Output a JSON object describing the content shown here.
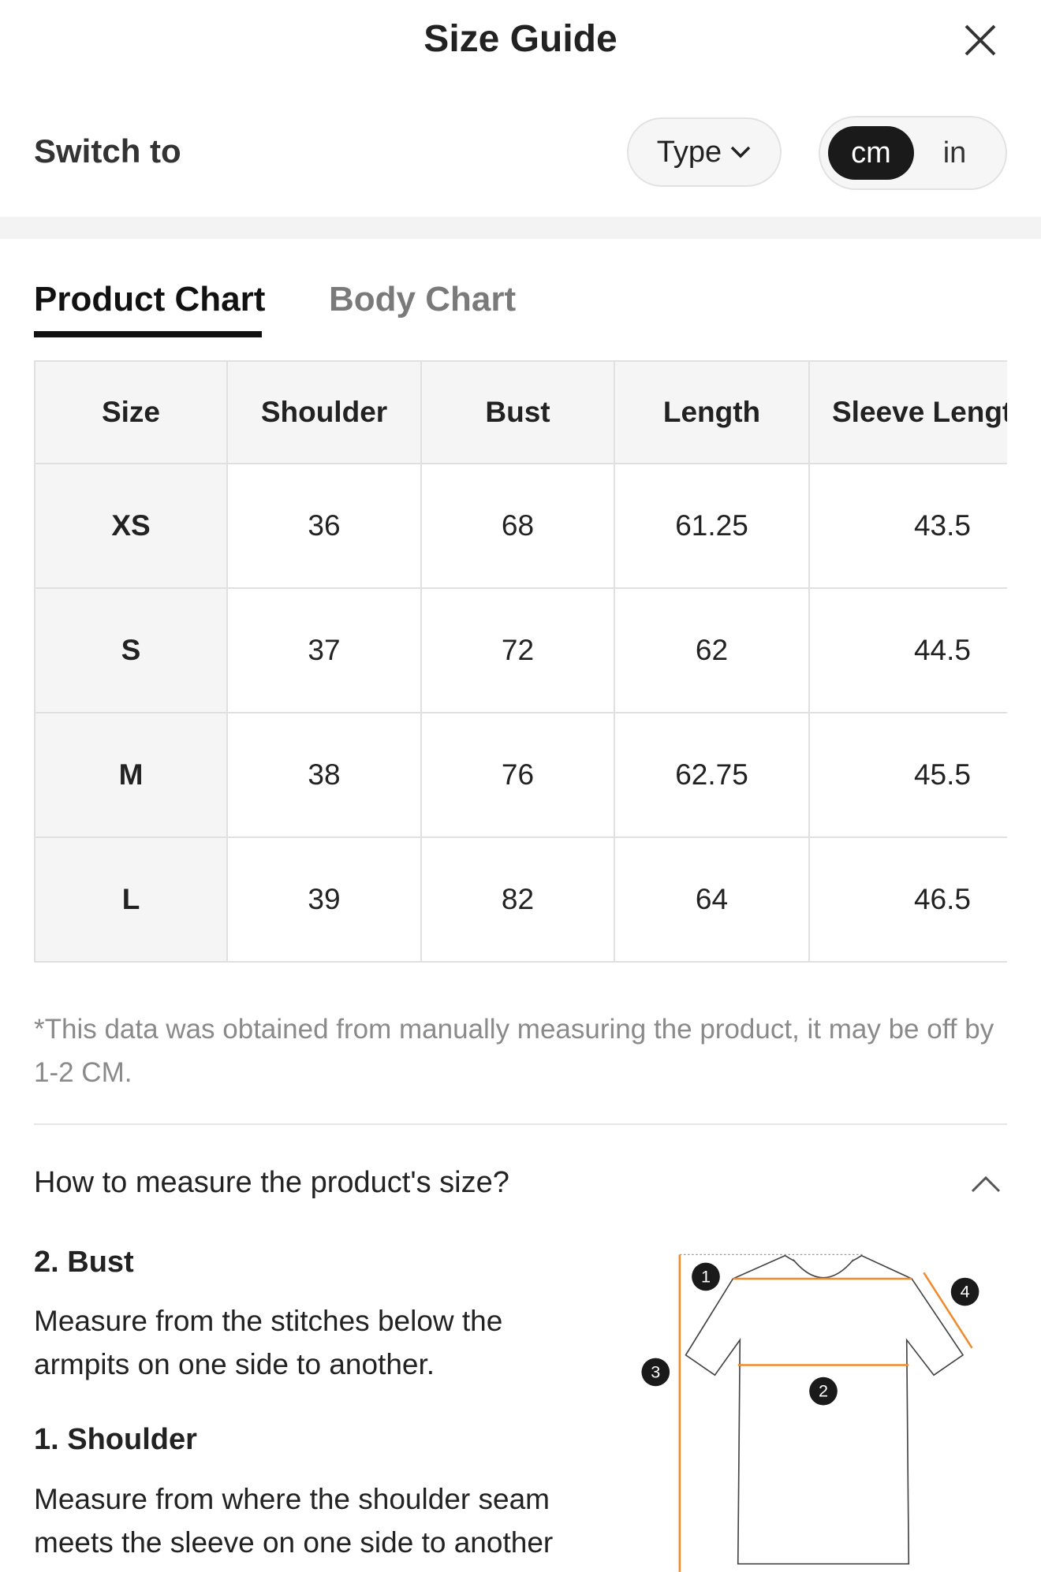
{
  "header": {
    "title": "Size Guide"
  },
  "switch": {
    "label": "Switch to",
    "type": "Type",
    "units": [
      "cm",
      "in"
    ]
  },
  "tabs": [
    "Product Chart",
    "Body Chart"
  ],
  "table": {
    "columns": [
      "Size",
      "Shoulder",
      "Bust",
      "Length",
      "Sleeve Length"
    ],
    "rows": [
      [
        "XS",
        "36",
        "68",
        "61.25",
        "43.5"
      ],
      [
        "S",
        "37",
        "72",
        "62",
        "44.5"
      ],
      [
        "M",
        "38",
        "76",
        "62.75",
        "45.5"
      ],
      [
        "L",
        "39",
        "82",
        "64",
        "46.5"
      ]
    ]
  },
  "note": "*This data was obtained from manually measuring the product, it may be off by 1-2 CM.",
  "measure": {
    "question": "How to measure the product's size?",
    "items": [
      {
        "title": "2. Bust",
        "text": "Measure from the stitches below the armpits on one side to another."
      },
      {
        "title": "1. Shoulder",
        "text": "Measure from where the shoulder seam meets the sleeve on one side to another"
      }
    ]
  },
  "diagram": {
    "markers": [
      "1",
      "2",
      "3",
      "4"
    ]
  }
}
